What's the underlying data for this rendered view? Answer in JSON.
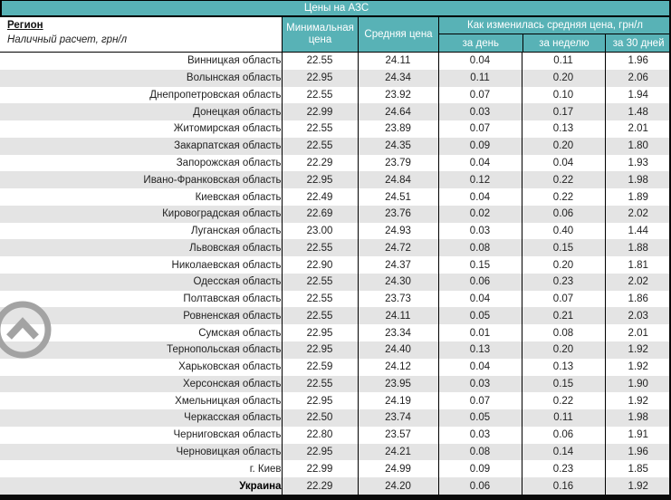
{
  "title": "Цены на АЗС",
  "header": {
    "region_label": "Регион",
    "region_sub": "Наличный расчет, грн/л",
    "col_min": "Минимальная цена",
    "col_avg": "Средняя цена",
    "col_change_group": "Как изменилась средняя цена, грн/л",
    "col_day": "за день",
    "col_week": "за неделю",
    "col_month": "за 30 дней"
  },
  "table": {
    "rows": [
      {
        "region": "Винницкая область",
        "min": "22.55",
        "avg": "24.11",
        "day": "0.04",
        "week": "0.11",
        "month": "1.96"
      },
      {
        "region": "Волынская область",
        "min": "22.95",
        "avg": "24.34",
        "day": "0.11",
        "week": "0.20",
        "month": "2.06"
      },
      {
        "region": "Днепропетровская область",
        "min": "22.55",
        "avg": "23.92",
        "day": "0.07",
        "week": "0.10",
        "month": "1.94"
      },
      {
        "region": "Донецкая область",
        "min": "22.99",
        "avg": "24.64",
        "day": "0.03",
        "week": "0.17",
        "month": "1.48"
      },
      {
        "region": "Житомирская область",
        "min": "22.55",
        "avg": "23.89",
        "day": "0.07",
        "week": "0.13",
        "month": "2.01"
      },
      {
        "region": "Закарпатская область",
        "min": "22.55",
        "avg": "24.35",
        "day": "0.09",
        "week": "0.20",
        "month": "1.80"
      },
      {
        "region": "Запорожская область",
        "min": "22.29",
        "avg": "23.79",
        "day": "0.04",
        "week": "0.04",
        "month": "1.93"
      },
      {
        "region": "Ивано-Франковская область",
        "min": "22.95",
        "avg": "24.84",
        "day": "0.12",
        "week": "0.22",
        "month": "1.98"
      },
      {
        "region": "Киевская область",
        "min": "22.49",
        "avg": "24.51",
        "day": "0.04",
        "week": "0.22",
        "month": "1.89"
      },
      {
        "region": "Кировоградская область",
        "min": "22.69",
        "avg": "23.76",
        "day": "0.02",
        "week": "0.06",
        "month": "2.02"
      },
      {
        "region": "Луганская область",
        "min": "23.00",
        "avg": "24.93",
        "day": "0.03",
        "week": "0.40",
        "month": "1.44"
      },
      {
        "region": "Львовская область",
        "min": "22.55",
        "avg": "24.72",
        "day": "0.08",
        "week": "0.15",
        "month": "1.88"
      },
      {
        "region": "Николаевская область",
        "min": "22.90",
        "avg": "24.37",
        "day": "0.15",
        "week": "0.20",
        "month": "1.81"
      },
      {
        "region": "Одесская область",
        "min": "22.55",
        "avg": "24.30",
        "day": "0.06",
        "week": "0.23",
        "month": "2.02"
      },
      {
        "region": "Полтавская область",
        "min": "22.55",
        "avg": "23.73",
        "day": "0.04",
        "week": "0.07",
        "month": "1.86"
      },
      {
        "region": "Ровненская область",
        "min": "22.55",
        "avg": "24.11",
        "day": "0.05",
        "week": "0.21",
        "month": "2.03"
      },
      {
        "region": "Сумская область",
        "min": "22.95",
        "avg": "23.34",
        "day": "0.01",
        "week": "0.08",
        "month": "2.01"
      },
      {
        "region": "Тернопольская область",
        "min": "22.95",
        "avg": "24.40",
        "day": "0.13",
        "week": "0.20",
        "month": "1.92"
      },
      {
        "region": "Харьковская область",
        "min": "22.59",
        "avg": "24.12",
        "day": "0.04",
        "week": "0.13",
        "month": "1.92"
      },
      {
        "region": "Херсонская область",
        "min": "22.55",
        "avg": "23.95",
        "day": "0.03",
        "week": "0.15",
        "month": "1.90"
      },
      {
        "region": "Хмельницкая область",
        "min": "22.95",
        "avg": "24.19",
        "day": "0.07",
        "week": "0.22",
        "month": "1.92"
      },
      {
        "region": "Черкасская область",
        "min": "22.50",
        "avg": "23.74",
        "day": "0.05",
        "week": "0.11",
        "month": "1.98"
      },
      {
        "region": "Черниговская область",
        "min": "22.80",
        "avg": "23.57",
        "day": "0.03",
        "week": "0.06",
        "month": "1.91"
      },
      {
        "region": "Черновицкая область",
        "min": "22.95",
        "avg": "24.21",
        "day": "0.08",
        "week": "0.14",
        "month": "1.96"
      },
      {
        "region": "г. Киев",
        "min": "22.99",
        "avg": "24.99",
        "day": "0.09",
        "week": "0.23",
        "month": "1.85"
      },
      {
        "region": "Украина",
        "bold": true,
        "min": "22.29",
        "avg": "24.20",
        "day": "0.06",
        "week": "0.16",
        "month": "1.92"
      }
    ]
  },
  "colors": {
    "teal_header": "#58b2b6",
    "row_stripe": "#e4e4e4",
    "change_red": "#ff2222",
    "border_black": "#0a0a0a",
    "icon_gray": "#a3a3a3"
  },
  "icons": {
    "scroll_top": "chevron-up-circle-icon"
  }
}
